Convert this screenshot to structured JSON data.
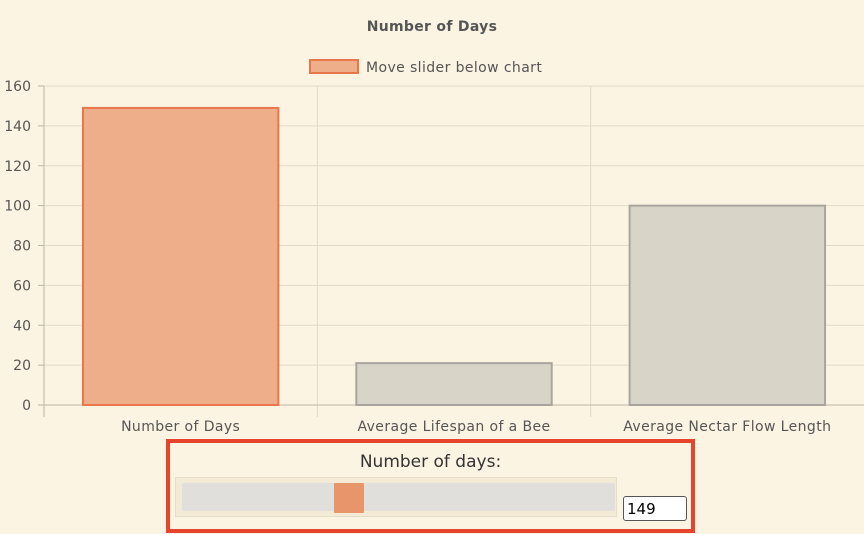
{
  "chart_data": {
    "type": "bar",
    "title": "Number of Days",
    "legend": {
      "label": "Move slider below chart",
      "placement": "top-center",
      "color": "#e8784a"
    },
    "categories": [
      "Number of Days",
      "Average Lifespan of a Bee",
      "Average Nectar Flow Length"
    ],
    "values": [
      149,
      21,
      100
    ],
    "bar_colors": [
      {
        "fill": "#eeae89",
        "stroke": "#e8784a"
      },
      {
        "fill": "#d8d4c8",
        "stroke": "#a9a59e"
      },
      {
        "fill": "#d8d4c8",
        "stroke": "#a9a59e"
      }
    ],
    "ylim": [
      0,
      160
    ],
    "yticks": [
      0,
      20,
      40,
      60,
      80,
      100,
      120,
      140,
      160
    ],
    "grid": true,
    "xlabel": "",
    "ylabel": ""
  },
  "control": {
    "label": "Number of days:",
    "value": "149",
    "slider_fraction": 0.5
  }
}
